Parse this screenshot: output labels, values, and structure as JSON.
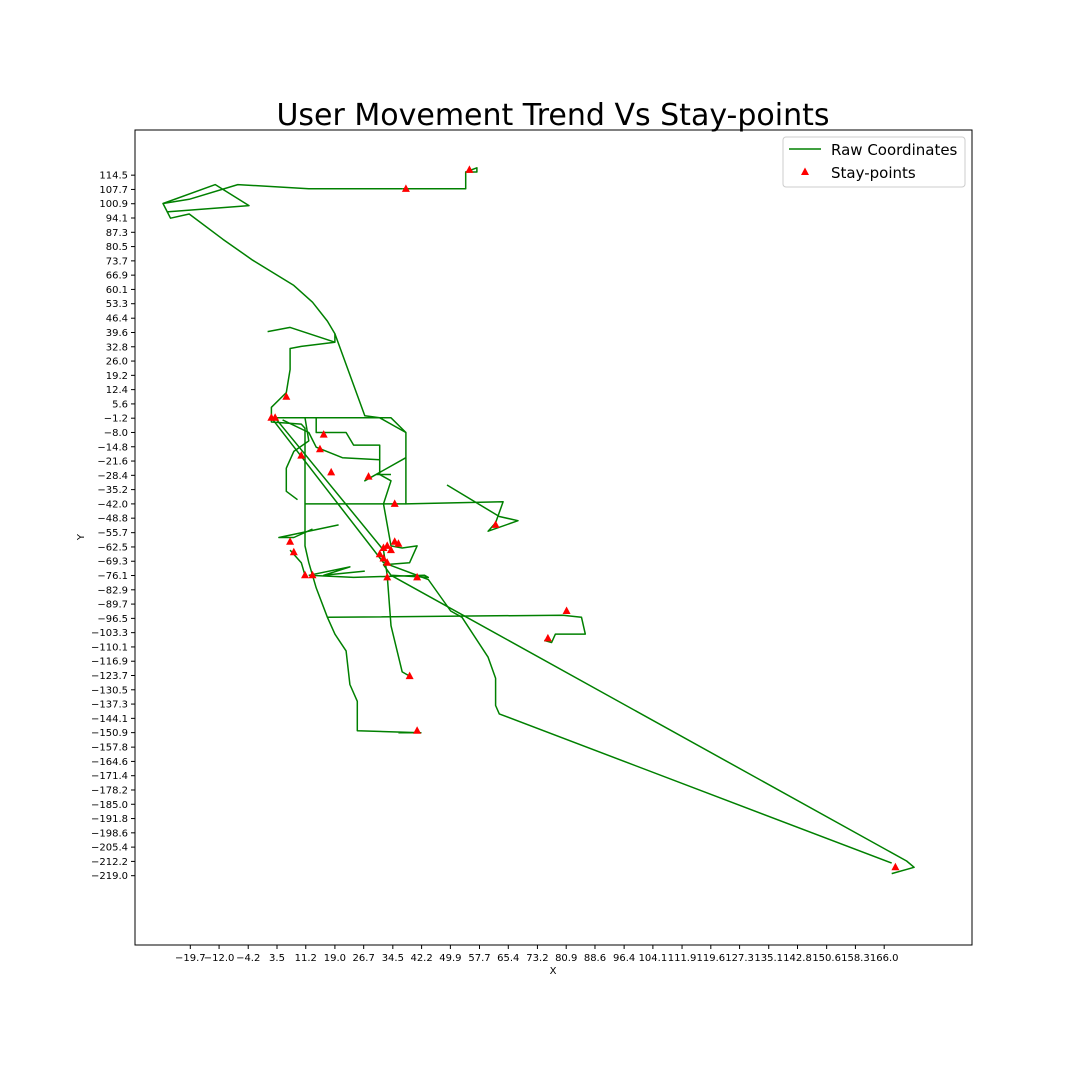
{
  "chart_data": {
    "type": "line",
    "title": "User Movement Trend Vs Stay-points",
    "xlabel": "X",
    "ylabel": "Y",
    "xlim": [
      -34.5,
      189.5
    ],
    "ylim": [
      -252,
      136
    ],
    "grid": false,
    "legend": {
      "placement": "top-right",
      "entries": [
        "Raw Coordinates",
        "Stay-points"
      ]
    },
    "colors": {
      "line": "#008000",
      "marker": "#ff0000"
    },
    "xticks": [
      -19.7,
      -12.0,
      -4.2,
      3.5,
      11.2,
      19.0,
      26.7,
      34.5,
      42.2,
      49.9,
      57.7,
      65.4,
      73.2,
      80.9,
      88.6,
      96.4,
      104.1,
      111.9,
      119.6,
      127.3,
      135.1,
      142.8,
      150.6,
      158.3,
      166.0
    ],
    "xtick_labels": [
      "−19.7",
      "−12.0",
      "−4.2",
      "3.5",
      "11.2",
      "19.0",
      "26.7",
      "34.5",
      "42.2",
      "49.9",
      "57.7",
      "65.4",
      "73.2",
      "80.9",
      "88.6",
      "96.4",
      "104.1",
      "111.9",
      "119.6",
      "127.3",
      "135.1",
      "142.8",
      "150.6",
      "158.3",
      "166.0"
    ],
    "yticks": [
      114.5,
      107.7,
      100.9,
      94.1,
      87.3,
      80.5,
      73.7,
      66.9,
      60.1,
      53.3,
      46.4,
      39.6,
      32.8,
      26.0,
      19.2,
      12.4,
      5.6,
      -1.2,
      -8.0,
      -14.8,
      -21.6,
      -28.4,
      -35.2,
      -42.0,
      -48.8,
      -55.7,
      -62.5,
      -69.3,
      -76.1,
      -82.9,
      -89.7,
      -96.5,
      -103.3,
      -110.1,
      -116.9,
      -123.7,
      -130.5,
      -137.3,
      -144.1,
      -150.9,
      -157.8,
      -164.6,
      -171.4,
      -178.2,
      -185.0,
      -191.8,
      -198.6,
      -205.4,
      -212.2,
      -219.0
    ],
    "ytick_labels": [
      "114.5",
      "107.7",
      "100.9",
      "94.1",
      "87.3",
      "80.5",
      "73.7",
      "66.9",
      "60.1",
      "53.3",
      "46.4",
      "39.6",
      "32.8",
      "26.0",
      "19.2",
      "12.4",
      "5.6",
      "−1.2",
      "−8.0",
      "−14.8",
      "−21.6",
      "−28.4",
      "−35.2",
      "−42.0",
      "−48.8",
      "−55.7",
      "−62.5",
      "−69.3",
      "−76.1",
      "−82.9",
      "−89.7",
      "−96.5",
      "−103.3",
      "−110.1",
      "−116.9",
      "−123.7",
      "−130.5",
      "−137.3",
      "−144.1",
      "−150.9",
      "−157.8",
      "−164.6",
      "−171.4",
      "−178.2",
      "−185.0",
      "−191.8",
      "−198.6",
      "−205.4",
      "−212.2",
      "−219.0"
    ],
    "series": [
      {
        "name": "Raw Coordinates",
        "style": "line",
        "paths": [
          [
            [
              37,
              108
            ],
            [
              12,
              108
            ],
            [
              -7,
              110
            ],
            [
              -20,
              103
            ],
            [
              -27,
              101
            ],
            [
              -25,
              94
            ],
            [
              -20,
              96
            ],
            [
              -11,
              84
            ],
            [
              -3,
              74
            ],
            [
              8,
              62
            ],
            [
              13,
              54
            ],
            [
              17,
              45
            ],
            [
              19,
              39
            ],
            [
              19,
              35
            ],
            [
              10,
              33
            ],
            [
              7,
              32
            ],
            [
              7,
              29
            ],
            [
              7,
              22
            ],
            [
              6,
              11
            ],
            [
              2,
              4
            ],
            [
              2,
              -1
            ],
            [
              2,
              -3
            ],
            [
              10,
              -4
            ],
            [
              11,
              -6
            ],
            [
              11,
              -12
            ],
            [
              11,
              -40
            ],
            [
              11,
              -62
            ],
            [
              12,
              -70
            ],
            [
              14,
              -82
            ],
            [
              17,
              -96
            ],
            [
              19,
              -104
            ],
            [
              22,
              -112
            ],
            [
              23,
              -128
            ],
            [
              25,
              -136
            ],
            [
              25,
              -150
            ],
            [
              42,
              -151
            ],
            [
              36,
              -151
            ]
          ],
          [
            [
              37,
              108
            ],
            [
              54,
              108
            ],
            [
              54,
              116
            ],
            [
              57,
              118
            ],
            [
              57,
              116
            ],
            [
              54,
              116
            ]
          ],
          [
            [
              -27,
              101
            ],
            [
              -13,
              110
            ],
            [
              -4,
              100
            ],
            [
              -26,
              97
            ]
          ],
          [
            [
              1,
              40
            ],
            [
              7,
              42
            ],
            [
              19,
              35
            ]
          ],
          [
            [
              2,
              -1
            ],
            [
              14,
              -1
            ],
            [
              14,
              -8
            ],
            [
              22,
              -8
            ],
            [
              24,
              -14
            ],
            [
              31,
              -14
            ],
            [
              31,
              -28
            ],
            [
              34,
              -31
            ],
            [
              32,
              -42
            ],
            [
              34,
              -62
            ],
            [
              37,
              -63
            ],
            [
              41,
              -62
            ],
            [
              39,
              -70
            ],
            [
              32,
              -71
            ],
            [
              34,
              -76
            ],
            [
              44,
              -77
            ],
            [
              43,
              -76
            ],
            [
              24,
              -77
            ],
            [
              12,
              -76
            ]
          ],
          [
            [
              14,
              -1
            ],
            [
              34,
              -1
            ],
            [
              38,
              -8
            ],
            [
              38,
              -14
            ],
            [
              38,
              -42
            ],
            [
              64,
              -41
            ],
            [
              62,
              -51
            ],
            [
              60,
              -55
            ],
            [
              68,
              -50
            ],
            [
              63,
              -48
            ],
            [
              49,
              -33
            ]
          ],
          [
            [
              11,
              -42
            ],
            [
              38,
              -42
            ]
          ],
          [
            [
              11,
              -76
            ],
            [
              10,
              -70
            ],
            [
              7,
              -64
            ]
          ],
          [
            [
              19,
              39
            ],
            [
              27,
              0
            ],
            [
              31,
              -1
            ],
            [
              38,
              -8
            ]
          ],
          [
            [
              3,
              -1
            ],
            [
              32,
              -64
            ],
            [
              33,
              -76
            ],
            [
              34,
              -100
            ],
            [
              37,
              -122
            ],
            [
              39,
              -124
            ]
          ],
          [
            [
              2,
              -1
            ],
            [
              32,
              -70
            ],
            [
              44,
              -78
            ],
            [
              50,
              -93
            ],
            [
              53,
              -96
            ],
            [
              60,
              -115
            ],
            [
              62,
              -125
            ],
            [
              62,
              -138
            ],
            [
              63,
              -142
            ],
            [
              168,
              -213
            ]
          ],
          [
            [
              34,
              -76
            ],
            [
              172,
              -212
            ],
            [
              174,
              -215
            ],
            [
              168,
              -218
            ]
          ],
          [
            [
              17,
              -96
            ],
            [
              80,
              -95
            ],
            [
              85,
              -96
            ],
            [
              86,
              -104
            ],
            [
              78,
              -104
            ],
            [
              77,
              -108
            ],
            [
              75,
              -107
            ]
          ],
          [
            [
              13,
              -54
            ],
            [
              8,
              -58
            ],
            [
              4,
              -58
            ],
            [
              20,
              -52
            ]
          ],
          [
            [
              11,
              -1
            ],
            [
              12,
              -12
            ],
            [
              8,
              -17
            ],
            [
              6,
              -25
            ],
            [
              6,
              -36
            ],
            [
              9,
              -40
            ]
          ],
          [
            [
              34,
              -28
            ],
            [
              30,
              -28
            ],
            [
              27,
              -31
            ],
            [
              38,
              -20
            ]
          ],
          [
            [
              12,
              -76
            ],
            [
              23,
              -72
            ],
            [
              16,
              -76
            ],
            [
              27,
              -74
            ]
          ],
          [
            [
              5,
              -2
            ],
            [
              12,
              -8
            ],
            [
              14,
              -15
            ],
            [
              21,
              -20
            ],
            [
              31,
              -21
            ]
          ]
        ]
      },
      {
        "name": "Stay-points",
        "style": "marker",
        "points": [
          [
            55,
            117
          ],
          [
            38,
            108
          ],
          [
            6,
            9
          ],
          [
            3,
            -1
          ],
          [
            2,
            -1
          ],
          [
            16,
            -9
          ],
          [
            15,
            -16
          ],
          [
            10,
            -19
          ],
          [
            18,
            -27
          ],
          [
            28,
            -29
          ],
          [
            35,
            -42
          ],
          [
            62,
            -52
          ],
          [
            7,
            -60
          ],
          [
            8,
            -65
          ],
          [
            32,
            -63
          ],
          [
            33,
            -62
          ],
          [
            34,
            -64
          ],
          [
            35,
            -60
          ],
          [
            36,
            -61
          ],
          [
            31,
            -66
          ],
          [
            32,
            -68
          ],
          [
            33,
            -70
          ],
          [
            11,
            -76
          ],
          [
            13,
            -76
          ],
          [
            33,
            -77
          ],
          [
            41,
            -77
          ],
          [
            81,
            -93
          ],
          [
            76,
            -106
          ],
          [
            39,
            -124
          ],
          [
            41,
            -150
          ],
          [
            169,
            -215
          ]
        ]
      }
    ]
  }
}
